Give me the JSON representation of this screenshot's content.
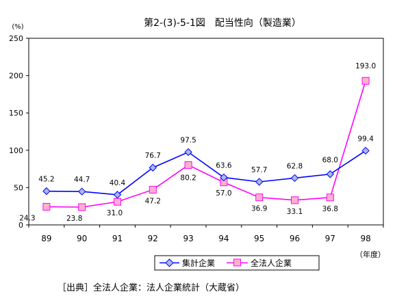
{
  "chart_data": {
    "type": "line",
    "title": "第2-(3)-5-1図　配当性向（製造業）",
    "ylabel": "(%)",
    "xunit": "（年度）",
    "categories": [
      "89",
      "90",
      "91",
      "92",
      "93",
      "94",
      "95",
      "96",
      "97",
      "98"
    ],
    "ylim": [
      0,
      250
    ],
    "yticks": [
      0,
      50,
      100,
      150,
      200,
      250
    ],
    "grid": false,
    "legend_position": "bottom-right",
    "series": [
      {
        "name": "集計企業",
        "color": "#0000ff",
        "marker": "diamond",
        "marker_fill": "#a9b9e8",
        "values": [
          45.2,
          44.7,
          40.4,
          76.7,
          97.5,
          63.6,
          57.7,
          62.8,
          68.0,
          99.4
        ],
        "labels": [
          "45.2",
          "44.7",
          "40.4",
          "76.7",
          "97.5",
          "63.6",
          "57.7",
          "62.8",
          "68.0",
          "99.4"
        ]
      },
      {
        "name": "全法人企業",
        "color": "#ff00ff",
        "marker": "square",
        "marker_fill": "#ffb2cc",
        "values": [
          24.3,
          23.8,
          31.0,
          47.2,
          80.2,
          57.0,
          36.9,
          33.1,
          36.8,
          193.0
        ],
        "labels": [
          "24.3",
          "23.8",
          "31.0",
          "47.2",
          "80.2",
          "57.0",
          "36.9",
          "33.1",
          "36.8",
          "193.0"
        ]
      }
    ]
  },
  "source_note": "［出典］全法人企業：法人企業統計（大蔵省）"
}
